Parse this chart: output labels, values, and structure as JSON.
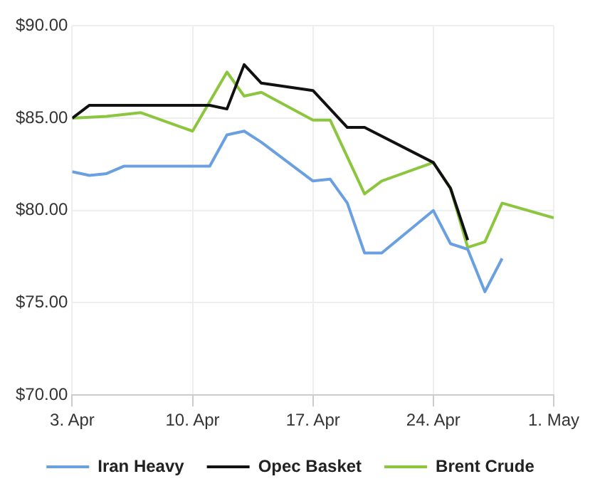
{
  "chart_data": {
    "type": "line",
    "xlim": [
      "--04-03",
      "--05-01"
    ],
    "xticks": [
      {
        "value": "--04-03",
        "label": "3. Apr"
      },
      {
        "value": "--04-10",
        "label": "10. Apr"
      },
      {
        "value": "--04-17",
        "label": "17. Apr"
      },
      {
        "value": "--04-24",
        "label": "24. Apr"
      },
      {
        "value": "--05-01",
        "label": "1. May"
      }
    ],
    "ylim": [
      70,
      90
    ],
    "yticks": [
      {
        "value": 70,
        "label": "$70.00"
      },
      {
        "value": 75,
        "label": "$75.00"
      },
      {
        "value": 80,
        "label": "$80.00"
      },
      {
        "value": 85,
        "label": "$85.00"
      },
      {
        "value": 90,
        "label": "$90.00"
      }
    ],
    "grid": true,
    "legend": "bottom",
    "marker": "none",
    "line_style": "solid",
    "series": [
      {
        "name": "Iran Heavy",
        "color": "#6a9fe0",
        "x": [
          "--04-03",
          "--04-04",
          "--04-05",
          "--04-06",
          "--04-11",
          "--04-12",
          "--04-13",
          "--04-14",
          "--04-17",
          "--04-18",
          "--04-19",
          "--04-20",
          "--04-21",
          "--04-24",
          "--04-25",
          "--04-26",
          "--04-27",
          "--04-28"
        ],
        "values": [
          82.1,
          81.9,
          82.0,
          82.4,
          82.4,
          84.1,
          84.3,
          83.7,
          81.6,
          81.7,
          80.4,
          77.7,
          77.7,
          80.0,
          78.2,
          77.9,
          75.6,
          77.4
        ]
      },
      {
        "name": "Opec Basket",
        "color": "#111111",
        "x": [
          "--04-03",
          "--04-04",
          "--04-11",
          "--04-12",
          "--04-13",
          "--04-14",
          "--04-17",
          "--04-19",
          "--04-20",
          "--04-24",
          "--04-25",
          "--04-26"
        ],
        "values": [
          85.0,
          85.7,
          85.7,
          85.5,
          87.9,
          86.9,
          86.5,
          84.5,
          84.5,
          82.6,
          81.2,
          78.4
        ]
      },
      {
        "name": "Brent Crude",
        "color": "#8cc63f",
        "x": [
          "--04-03",
          "--04-05",
          "--04-07",
          "--04-10",
          "--04-12",
          "--04-13",
          "--04-14",
          "--04-17",
          "--04-18",
          "--04-20",
          "--04-21",
          "--04-24",
          "--04-25",
          "--04-26",
          "--04-27",
          "--04-28",
          "--05-01"
        ],
        "values": [
          85.0,
          85.1,
          85.3,
          84.3,
          87.5,
          86.2,
          86.4,
          84.9,
          84.9,
          80.9,
          81.6,
          82.6,
          81.2,
          78.0,
          78.3,
          80.4,
          79.6
        ]
      }
    ]
  }
}
